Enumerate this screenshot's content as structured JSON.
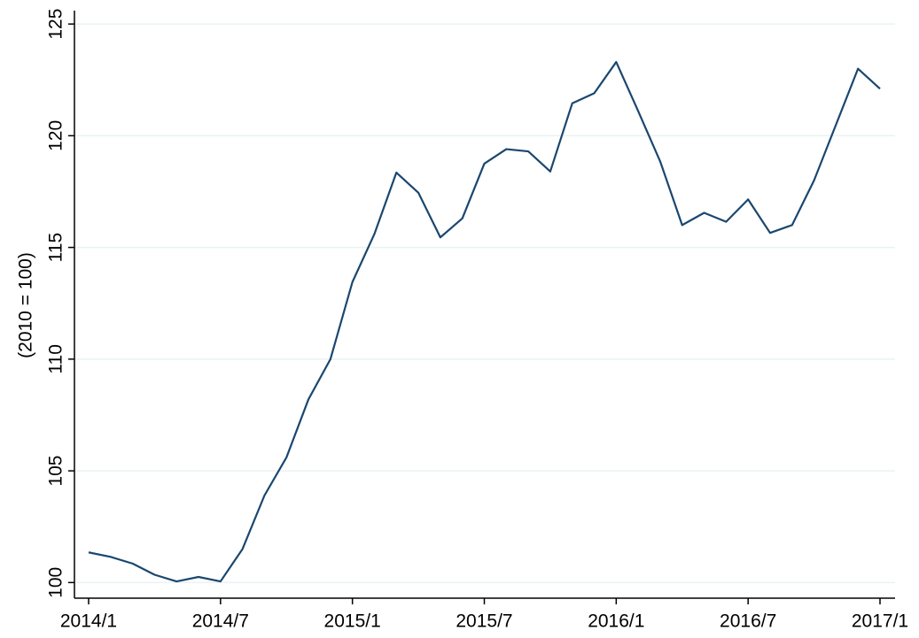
{
  "chart_data": {
    "type": "line",
    "y_label": "(2010 = 100)",
    "categories": [
      "2014/1",
      null,
      null,
      null,
      null,
      null,
      "2014/7",
      null,
      null,
      null,
      null,
      null,
      "2015/1",
      null,
      null,
      null,
      null,
      null,
      "2015/7",
      null,
      null,
      null,
      null,
      null,
      "2016/1",
      null,
      null,
      null,
      null,
      null,
      "2016/7",
      null,
      null,
      null,
      null,
      null,
      "2017/1"
    ],
    "values": [
      101.35,
      101.15,
      100.85,
      100.35,
      100.05,
      100.25,
      100.05,
      101.5,
      103.9,
      105.6,
      108.2,
      110.0,
      113.45,
      115.6,
      118.35,
      117.45,
      115.45,
      116.3,
      118.75,
      119.4,
      119.3,
      118.4,
      121.45,
      121.9,
      123.3,
      121.1,
      118.85,
      116.0,
      116.55,
      116.15,
      117.15,
      115.65,
      116.0,
      118.0,
      120.5,
      123.0,
      122.1
    ],
    "color": "#1a476f",
    "ylim": [
      99.3,
      125.6
    ],
    "yticks": [
      100,
      105,
      110,
      115,
      120,
      125
    ],
    "grid": true
  }
}
